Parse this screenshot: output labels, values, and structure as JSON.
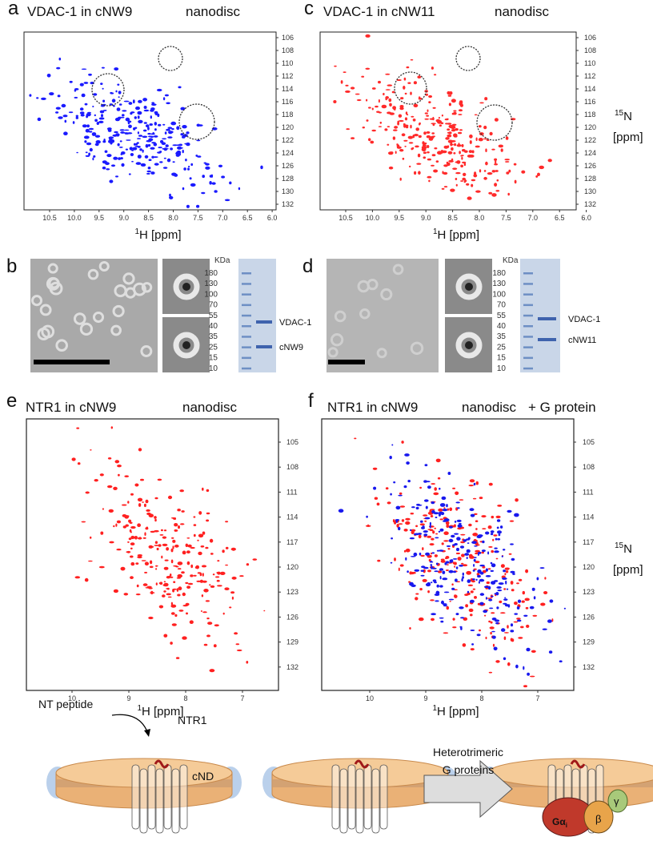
{
  "panels": [
    {
      "label": "a",
      "title": "VDAC-1 in cNW9",
      "subtitle": "nanodisc",
      "x_ticks": [
        "10.5",
        "10.0",
        "9.5",
        "9.0",
        "8.5",
        "8.0",
        "7.5",
        "7.0",
        "6.5",
        "6.0"
      ],
      "y_ticks": [
        "106",
        "108",
        "110",
        "112",
        "114",
        "116",
        "118",
        "120",
        "122",
        "124",
        "126",
        "128",
        "130",
        "132"
      ],
      "x_label": {
        "sup": "1",
        "text": "H [ppm]"
      }
    },
    {
      "label": "c",
      "title": "VDAC-1 in cNW11",
      "subtitle": "nanodisc",
      "x_ticks": [
        "10.5",
        "10.0",
        "9.5",
        "9.0",
        "8.5",
        "8.0",
        "7.5",
        "7.0",
        "6.5",
        "6.0"
      ],
      "y_ticks": [
        "106",
        "108",
        "110",
        "112",
        "114",
        "116",
        "118",
        "120",
        "122",
        "124",
        "126",
        "128",
        "130",
        "132"
      ],
      "x_label": {
        "sup": "1",
        "text": "H [ppm]"
      }
    },
    {
      "label": "e",
      "title": "NTR1 in cNW9",
      "subtitle": "nanodisc",
      "x_ticks": [
        "10",
        "9",
        "8",
        "7"
      ],
      "y_ticks": [
        "105",
        "108",
        "111",
        "114",
        "117",
        "120",
        "123",
        "126",
        "129",
        "132"
      ],
      "x_label": {
        "sup": "1",
        "text": "H [ppm]"
      }
    },
    {
      "label": "f",
      "title": "NTR1 in cNW9",
      "subtitle": "nanodisc",
      "extra": "+ G protein",
      "x_ticks": [
        "10",
        "9",
        "8",
        "7"
      ],
      "y_ticks": [
        "105",
        "108",
        "111",
        "114",
        "117",
        "120",
        "123",
        "126",
        "129",
        "132"
      ],
      "x_label": {
        "sup": "1",
        "text": "H [ppm]"
      }
    }
  ],
  "y_axis_label": {
    "sup": "15",
    "text": "N",
    "unit": "[ppm]"
  },
  "gels": [
    {
      "label": "b",
      "unit": "KDa",
      "markers": [
        "180",
        "130",
        "100",
        "70",
        "55",
        "40",
        "35",
        "25",
        "15",
        "10"
      ],
      "bands": [
        "VDAC-1",
        "cNW9"
      ]
    },
    {
      "label": "d",
      "unit": "KDa",
      "markers": [
        "180",
        "130",
        "100",
        "70",
        "55",
        "40",
        "35",
        "25",
        "15",
        "10"
      ],
      "bands": [
        "VDAC-1",
        "cNW11"
      ]
    }
  ],
  "schematic": {
    "nt_peptide": "NT peptide",
    "receptor": "NTR1",
    "disc": "cND",
    "arrow_label": [
      "Heterotrimeric",
      "G proteins"
    ],
    "alpha": "Gα",
    "alpha_sub": "i",
    "beta": "β",
    "gamma": "γ"
  }
}
